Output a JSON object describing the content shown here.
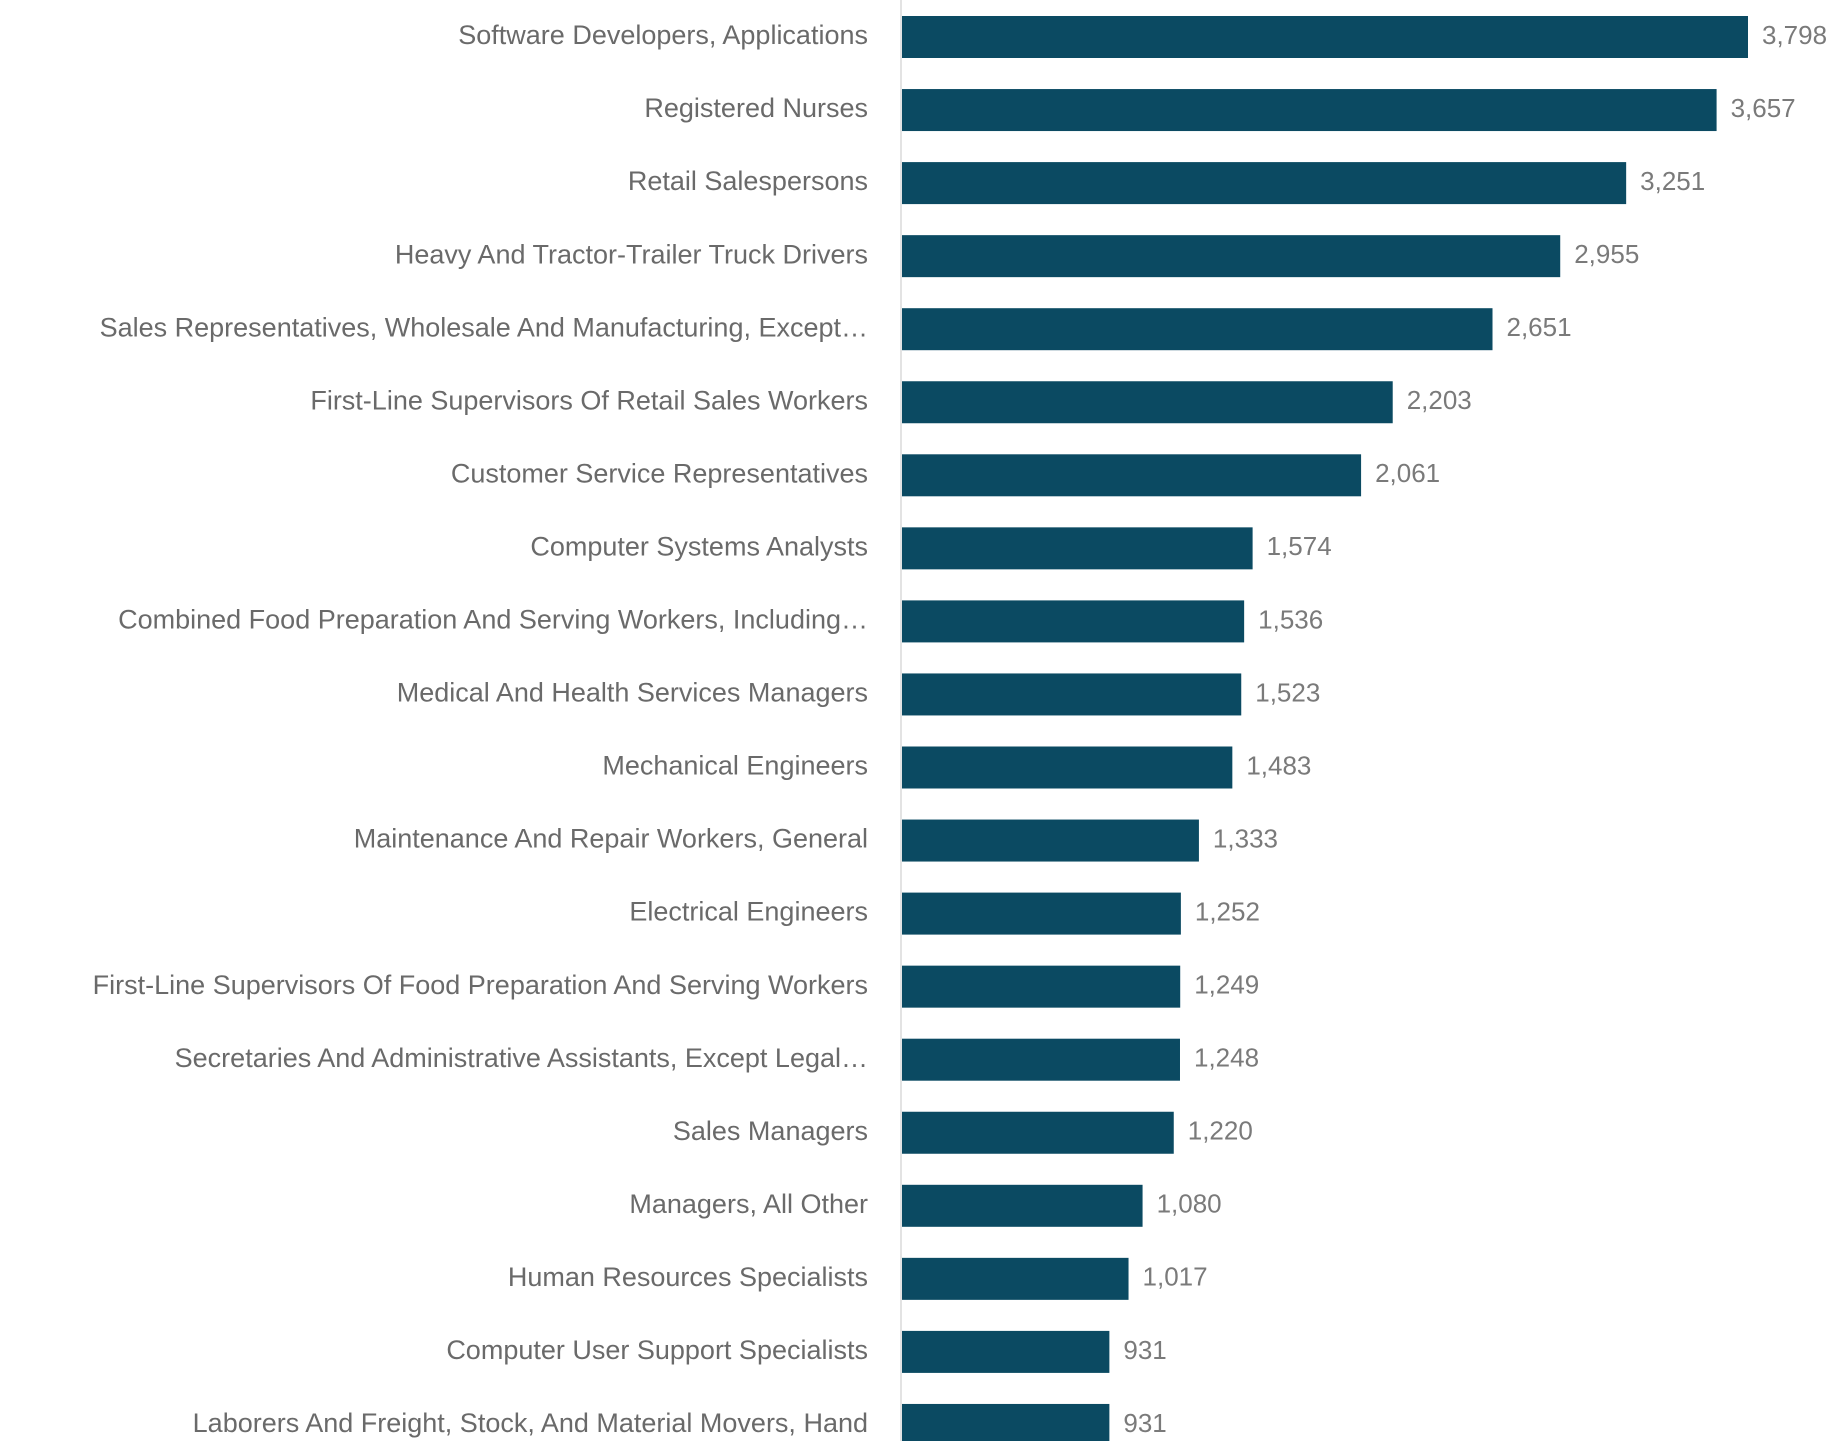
{
  "chart_data": {
    "type": "bar",
    "orientation": "horizontal",
    "categories": [
      "Software Developers, Applications",
      "Registered Nurses",
      "Retail Salespersons",
      "Heavy And Tractor-Trailer Truck Drivers",
      "Sales Representatives, Wholesale And Manufacturing, Except…",
      "First-Line Supervisors Of Retail Sales Workers",
      "Customer Service Representatives",
      "Computer Systems Analysts",
      "Combined Food Preparation And Serving Workers, Including…",
      "Medical And Health Services Managers",
      "Mechanical Engineers",
      "Maintenance And Repair Workers, General",
      "Electrical Engineers",
      "First-Line Supervisors Of Food Preparation And Serving Workers",
      "Secretaries And Administrative Assistants, Except Legal…",
      "Sales Managers",
      "Managers, All Other",
      "Human Resources Specialists",
      "Computer User Support Specialists",
      "Laborers And Freight, Stock, And Material Movers, Hand"
    ],
    "values": [
      3798,
      3657,
      3251,
      2955,
      2651,
      2203,
      2061,
      1574,
      1536,
      1523,
      1483,
      1333,
      1252,
      1249,
      1248,
      1220,
      1080,
      1017,
      931,
      931
    ],
    "value_labels": [
      "3,798",
      "3,657",
      "3,251",
      "2,955",
      "2,651",
      "2,203",
      "2,061",
      "1,574",
      "1,536",
      "1,523",
      "1,483",
      "1,333",
      "1,252",
      "1,249",
      "1,248",
      "1,220",
      "1,080",
      "1,017",
      "931",
      "931"
    ],
    "title": "",
    "xlabel": "",
    "ylabel": "",
    "xlim": [
      0,
      3798
    ],
    "grid": false,
    "legend": "none",
    "bar_color": "#0b4a62"
  }
}
